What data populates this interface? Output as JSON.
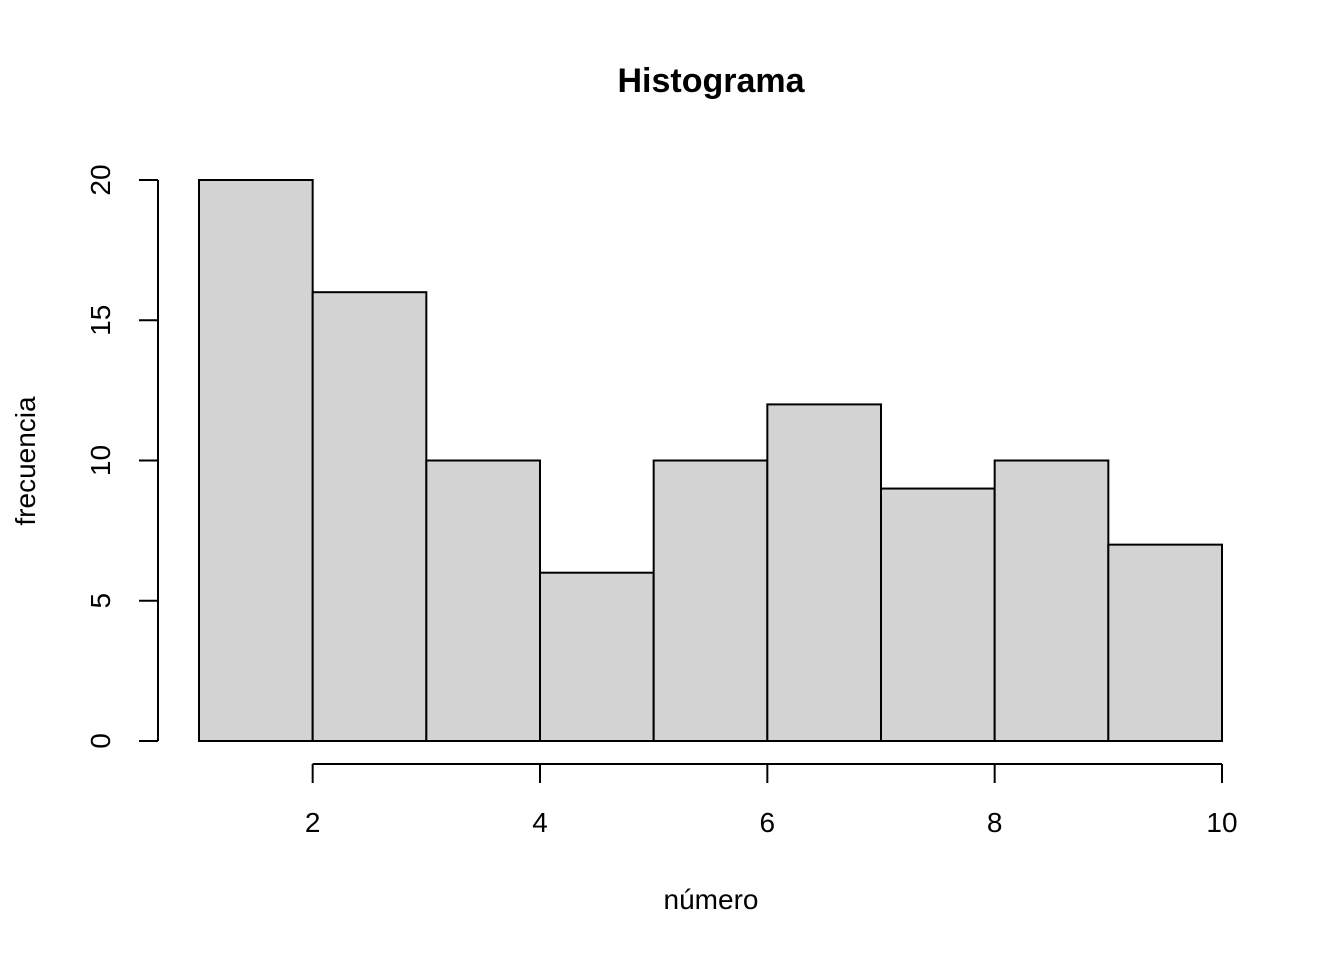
{
  "chart_data": {
    "type": "bar",
    "subtype": "histogram",
    "title": "Histograma",
    "xlabel": "número",
    "ylabel": "frecuencia",
    "bin_edges": [
      1,
      2,
      3,
      4,
      5,
      6,
      7,
      8,
      9,
      10
    ],
    "values": [
      20,
      16,
      10,
      6,
      10,
      12,
      9,
      10,
      7
    ],
    "xlim": [
      1,
      10
    ],
    "ylim": [
      0,
      20
    ],
    "x_ticks": [
      2,
      4,
      6,
      8,
      10
    ],
    "y_ticks": [
      0,
      5,
      10,
      15,
      20
    ],
    "bar_fill": "#d3d3d3",
    "bar_stroke": "#000000",
    "grid": false,
    "legend": "none"
  }
}
